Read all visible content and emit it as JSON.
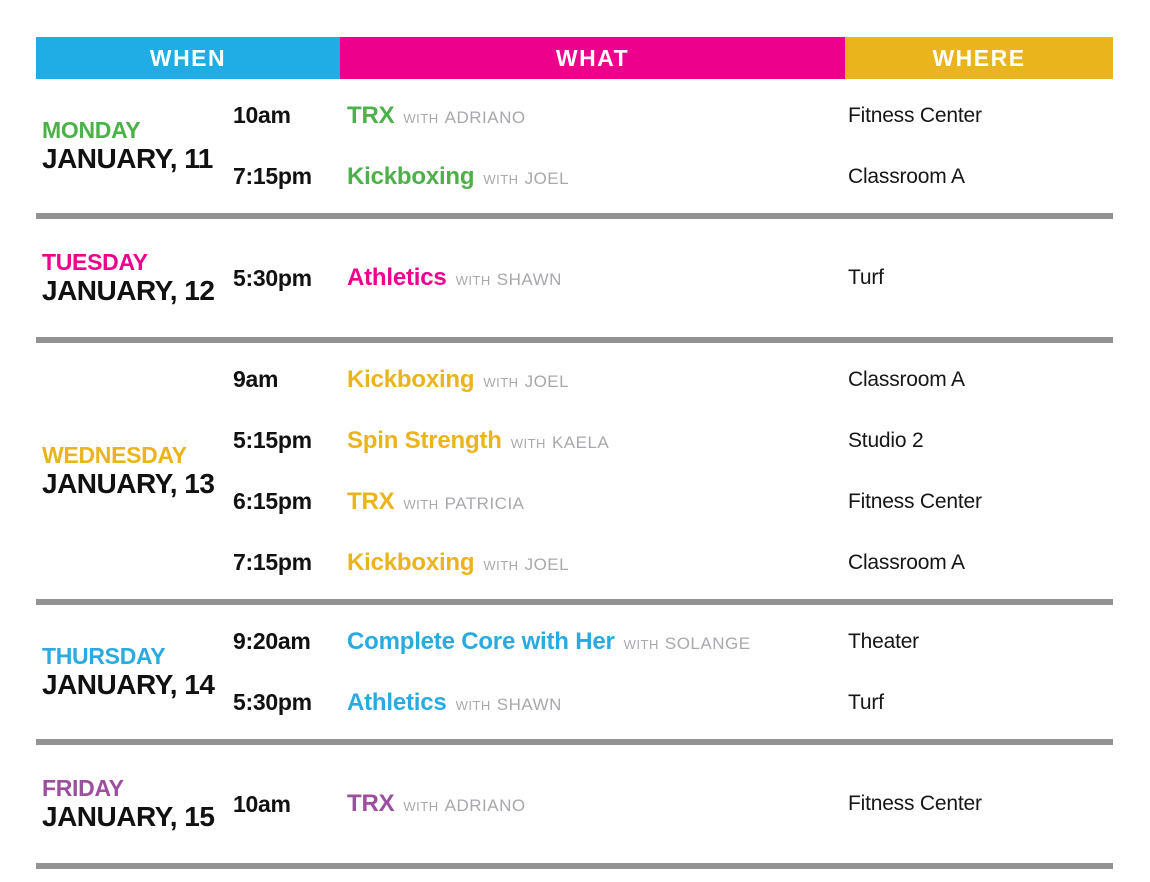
{
  "header": {
    "columns": [
      {
        "label": "WHEN",
        "color": "#20ACE4"
      },
      {
        "label": "WHAT",
        "color": "#EC008C"
      },
      {
        "label": "WHERE",
        "color": "#EAB41D"
      }
    ]
  },
  "labels": {
    "with": "WITH"
  },
  "days": [
    {
      "name": "MONDAY",
      "date": "JANUARY, 11",
      "color": "#4DB14A",
      "classes": [
        {
          "time": "10am",
          "name": "TRX",
          "instructor": "ADRIANO",
          "location": "Fitness Center"
        },
        {
          "time": "7:15pm",
          "name": "Kickboxing",
          "instructor": "JOEL",
          "location": "Classroom A"
        }
      ]
    },
    {
      "name": "TUESDAY",
      "date": "JANUARY, 12",
      "color": "#EC008C",
      "classes": [
        {
          "time": "5:30pm",
          "name": "Athletics",
          "instructor": "SHAWN",
          "location": "Turf"
        }
      ]
    },
    {
      "name": "WEDNESDAY",
      "date": "JANUARY, 13",
      "color": "#EAB41D",
      "classes": [
        {
          "time": "9am",
          "name": "Kickboxing",
          "instructor": "JOEL",
          "location": "Classroom A"
        },
        {
          "time": "5:15pm",
          "name": "Spin Strength",
          "instructor": "KAELA",
          "location": "Studio 2"
        },
        {
          "time": "6:15pm",
          "name": "TRX",
          "instructor": "PATRICIA",
          "location": "Fitness Center"
        },
        {
          "time": "7:15pm",
          "name": "Kickboxing",
          "instructor": "JOEL",
          "location": "Classroom A"
        }
      ]
    },
    {
      "name": "THURSDAY",
      "date": "JANUARY, 14",
      "color": "#29ABE2",
      "classes": [
        {
          "time": "9:20am",
          "name": "Complete Core with Her",
          "instructor": "SOLANGE",
          "location": "Theater"
        },
        {
          "time": "5:30pm",
          "name": "Athletics",
          "instructor": "SHAWN",
          "location": "Turf"
        }
      ]
    },
    {
      "name": "FRIDAY",
      "date": "JANUARY, 15",
      "color": "#9C4F9F",
      "classes": [
        {
          "time": "10am",
          "name": "TRX",
          "instructor": "ADRIANO",
          "location": "Fitness Center"
        }
      ]
    }
  ]
}
